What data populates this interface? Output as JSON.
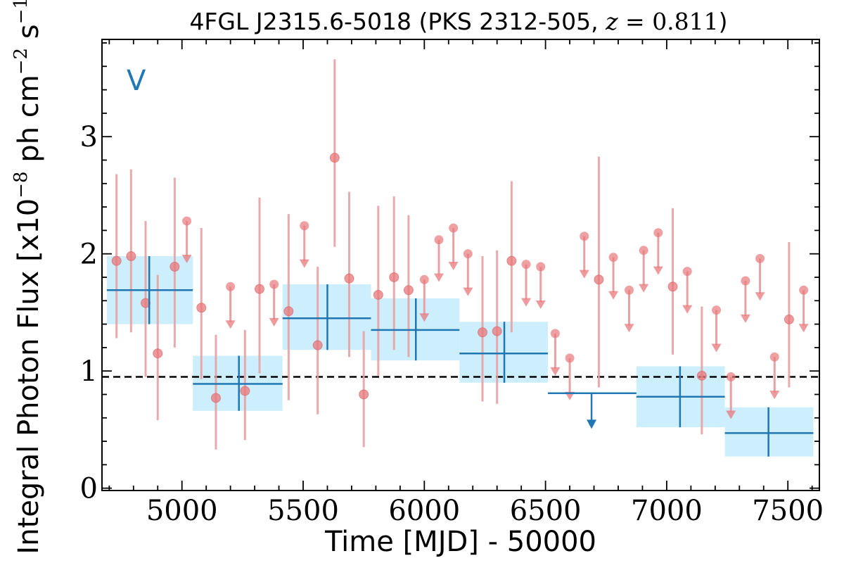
{
  "chart_data": {
    "type": "scatter",
    "title": "4FGL J2315.6-5018 (PKS 2312-505, z = 0.811)",
    "title_parts": {
      "prefix": "4FGL J2315.6-5018 (PKS 2312-505, ",
      "z_var": "z",
      "z_eq": " = ",
      "z_val": "0.811",
      "suffix": ")"
    },
    "xlabel": "Time [MJD] - 50000",
    "ylabel": "Integral Photon Flux [x10",
    "ylabel_parts": {
      "base": "Integral Photon Flux [x10",
      "exp1": "−8",
      "mid": " ph cm",
      "exp2": "−2",
      "mid2": " s",
      "exp3": "−1",
      "end": "]"
    },
    "panel_tag": "V",
    "xlim": [
      4670,
      7630
    ],
    "ylim": [
      -0.02,
      3.83
    ],
    "x_ticks": [
      5000,
      5500,
      6000,
      6500,
      7000,
      7500
    ],
    "y_ticks": [
      0,
      1,
      2,
      3
    ],
    "mean_flux": 0.95,
    "colors": {
      "fine_points": "#e8777a",
      "fine_bars": "#e8a1a3",
      "coarse_line": "#1f77b4",
      "coarse_band": "#cdeefc",
      "mean_line": "#000000"
    },
    "series": [
      {
        "name": "fine",
        "points": [
          {
            "x": 4730,
            "y": 1.94,
            "ylo": 1.28,
            "yhi": 2.68
          },
          {
            "x": 4790,
            "y": 1.98,
            "ylo": 1.33,
            "yhi": 2.72
          },
          {
            "x": 4850,
            "y": 1.58,
            "ylo": 0.95,
            "yhi": 2.28
          },
          {
            "x": 4900,
            "y": 1.15,
            "ylo": 0.58,
            "yhi": 1.82
          },
          {
            "x": 4970,
            "y": 1.89,
            "ylo": 1.2,
            "yhi": 2.65
          },
          {
            "x": 5080,
            "y": 1.54,
            "ylo": 0.93,
            "yhi": 2.22
          },
          {
            "x": 5140,
            "y": 0.77,
            "ylo": 0.33,
            "yhi": 1.31
          },
          {
            "x": 5260,
            "y": 0.83,
            "ylo": 0.41,
            "yhi": 1.35
          },
          {
            "x": 5320,
            "y": 1.7,
            "ylo": 0.98,
            "yhi": 2.48
          },
          {
            "x": 5440,
            "y": 1.51,
            "ylo": 0.75,
            "yhi": 2.34
          },
          {
            "x": 5560,
            "y": 1.22,
            "ylo": 0.63,
            "yhi": 1.89
          },
          {
            "x": 5630,
            "y": 2.82,
            "ylo": 2.06,
            "yhi": 3.66
          },
          {
            "x": 5690,
            "y": 1.79,
            "ylo": 1.12,
            "yhi": 2.53
          },
          {
            "x": 5750,
            "y": 0.8,
            "ylo": 0.35,
            "yhi": 1.34
          },
          {
            "x": 5810,
            "y": 1.65,
            "ylo": 0.96,
            "yhi": 2.41
          },
          {
            "x": 5875,
            "y": 1.8,
            "ylo": 1.18,
            "yhi": 2.49
          },
          {
            "x": 5935,
            "y": 1.69,
            "ylo": 1.12,
            "yhi": 2.33
          },
          {
            "x": 6240,
            "y": 1.33,
            "ylo": 0.74,
            "yhi": 1.98
          },
          {
            "x": 6300,
            "y": 1.34,
            "ylo": 0.72,
            "yhi": 2.03
          },
          {
            "x": 6360,
            "y": 1.94,
            "ylo": 1.33,
            "yhi": 2.62
          },
          {
            "x": 6720,
            "y": 1.78,
            "ylo": 0.86,
            "yhi": 2.83
          },
          {
            "x": 7025,
            "y": 1.72,
            "ylo": 1.14,
            "yhi": 2.39
          },
          {
            "x": 7145,
            "y": 0.96,
            "ylo": 0.46,
            "yhi": 1.55
          },
          {
            "x": 7505,
            "y": 1.44,
            "ylo": 0.86,
            "yhi": 2.1
          }
        ],
        "upper_limits": [
          {
            "x": 5020,
            "y": 2.28
          },
          {
            "x": 5200,
            "y": 1.72
          },
          {
            "x": 5380,
            "y": 1.74
          },
          {
            "x": 5505,
            "y": 2.24
          },
          {
            "x": 6000,
            "y": 1.78
          },
          {
            "x": 6060,
            "y": 2.12
          },
          {
            "x": 6120,
            "y": 2.22
          },
          {
            "x": 6180,
            "y": 2.0
          },
          {
            "x": 6420,
            "y": 1.91
          },
          {
            "x": 6480,
            "y": 1.89
          },
          {
            "x": 6540,
            "y": 1.32
          },
          {
            "x": 6600,
            "y": 1.11
          },
          {
            "x": 6660,
            "y": 2.15
          },
          {
            "x": 6780,
            "y": 1.97
          },
          {
            "x": 6845,
            "y": 1.69
          },
          {
            "x": 6905,
            "y": 2.03
          },
          {
            "x": 6965,
            "y": 2.18
          },
          {
            "x": 7085,
            "y": 1.85
          },
          {
            "x": 7205,
            "y": 1.52
          },
          {
            "x": 7265,
            "y": 0.95
          },
          {
            "x": 7325,
            "y": 1.77
          },
          {
            "x": 7385,
            "y": 1.96
          },
          {
            "x": 7445,
            "y": 1.12
          },
          {
            "x": 7565,
            "y": 1.69
          }
        ]
      },
      {
        "name": "coarse",
        "bins": [
          {
            "x0": 4690,
            "x1": 5045,
            "xc": 4865,
            "y": 1.69,
            "ylo": 1.4,
            "yhi": 1.98
          },
          {
            "x0": 5045,
            "x1": 5415,
            "xc": 5235,
            "y": 0.89,
            "ylo": 0.66,
            "yhi": 1.13
          },
          {
            "x0": 5415,
            "x1": 5780,
            "xc": 5600,
            "y": 1.45,
            "ylo": 1.18,
            "yhi": 1.74
          },
          {
            "x0": 5780,
            "x1": 6145,
            "xc": 5965,
            "y": 1.35,
            "ylo": 1.09,
            "yhi": 1.62
          },
          {
            "x0": 6145,
            "x1": 6510,
            "xc": 6330,
            "y": 1.15,
            "ylo": 0.9,
            "yhi": 1.42
          },
          {
            "x0": 6875,
            "x1": 7240,
            "xc": 7055,
            "y": 0.78,
            "ylo": 0.52,
            "yhi": 1.04
          },
          {
            "x0": 7240,
            "x1": 7605,
            "xc": 7420,
            "y": 0.47,
            "ylo": 0.27,
            "yhi": 0.69
          }
        ],
        "upper_limits": [
          {
            "x0": 6510,
            "x1": 6875,
            "xc": 6690,
            "y": 0.81
          }
        ]
      }
    ]
  }
}
